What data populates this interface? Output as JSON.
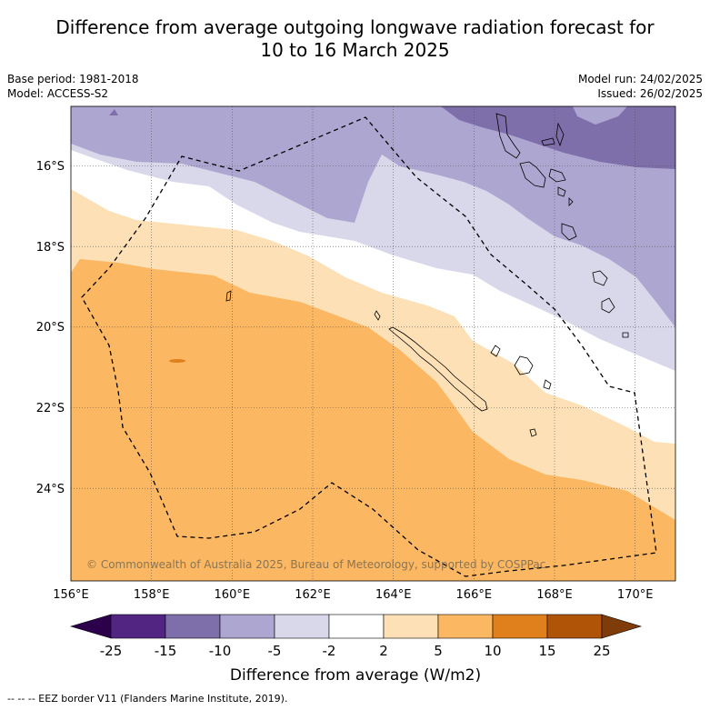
{
  "title_line1": "Difference from average outgoing longwave radiation forecast for",
  "title_line2": "10 to 16 March 2025",
  "meta": {
    "base_period": "Base period: 1981-2018",
    "model": "Model: ACCESS-S2",
    "model_run": "Model run: 24/02/2025",
    "issued": "Issued: 26/02/2025"
  },
  "map": {
    "copyright": "© Commonwealth of Australia 2025, Bureau of Meteorology, supported by COSPPac",
    "lon_labels": [
      "156°E",
      "158°E",
      "160°E",
      "162°E",
      "164°E",
      "166°E",
      "168°E",
      "170°E"
    ],
    "lat_labels": [
      "16°S",
      "18°S",
      "20°S",
      "22°S",
      "24°S"
    ]
  },
  "colorbar": {
    "ticks": [
      "-25",
      "-15",
      "-10",
      "-5",
      "-2",
      "2",
      "5",
      "10",
      "15",
      "25"
    ],
    "label": "Difference from average (W/m2)",
    "colors": [
      "#522583",
      "#7e6fab",
      "#ada6d0",
      "#d9d8ea",
      "#ffffff",
      "#fde0b6",
      "#fbb761",
      "#e0801c",
      "#b05507"
    ],
    "extend_low_color": "#2d004b",
    "extend_high_color": "#7f3b08"
  },
  "footnote": "-- -- -- EEZ border V11 (Flanders Marine Institute, 2019)."
}
